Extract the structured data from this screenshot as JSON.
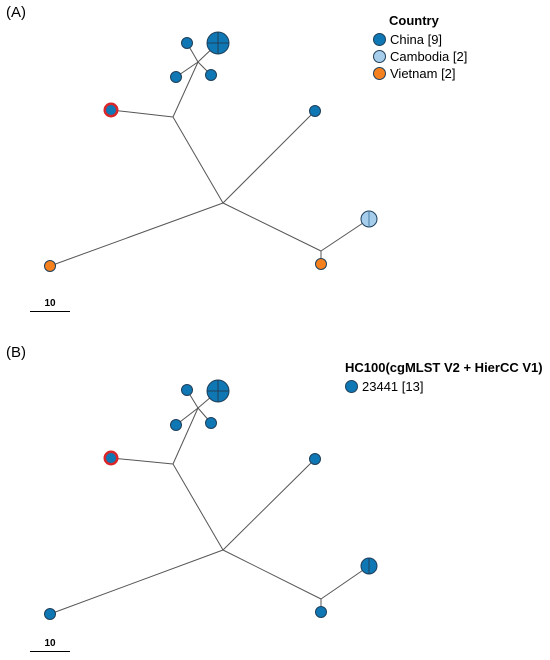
{
  "panel_a": {
    "label": "(A)",
    "legend": {
      "title": "Country",
      "entries": [
        {
          "label": "China [9]",
          "color": "#0f77b4"
        },
        {
          "label": "Cambodia [2]",
          "color": "#a6cdea"
        },
        {
          "label": "Vietnam [2]",
          "color": "#f5801e"
        }
      ]
    },
    "scale_label": "10"
  },
  "panel_b": {
    "label": "(B)",
    "legend": {
      "title": "HC100(cgMLST V2 + HierCC V1)",
      "entries": [
        {
          "label": "23441 [13]",
          "color": "#0f77b4"
        }
      ]
    },
    "scale_label": "10"
  },
  "colors": {
    "china": "#0f77b4",
    "cambodia": "#a6cdea",
    "vietnam": "#f5801e",
    "highlight_ring": "#d9262a",
    "node_stroke": "#1f3f5a",
    "edge": "#555555"
  }
}
